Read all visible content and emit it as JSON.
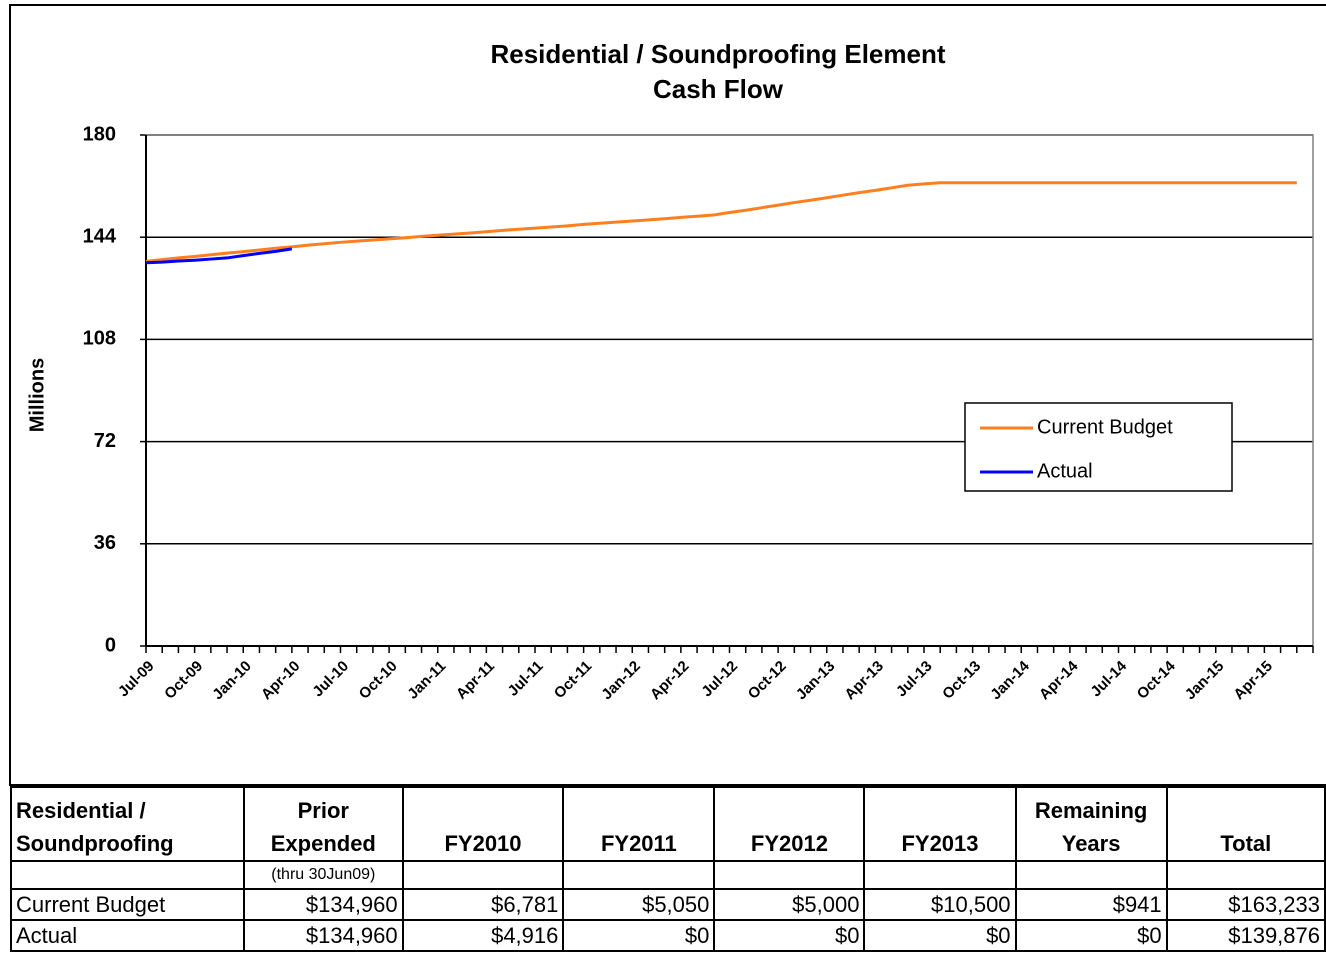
{
  "chart_data": {
    "type": "line",
    "title": "Residential / Soundproofing Element",
    "subtitle": "Cash Flow",
    "y_label": "Millions",
    "categories": [
      "Jul-09",
      null,
      null,
      "Oct-09",
      null,
      null,
      "Jan-10",
      null,
      null,
      "Apr-10",
      null,
      null,
      "Jul-10",
      null,
      null,
      "Oct-10",
      null,
      null,
      "Jan-11",
      null,
      null,
      "Apr-11",
      null,
      null,
      "Jul-11",
      null,
      null,
      "Oct-11",
      null,
      null,
      "Jan-12",
      null,
      null,
      "Apr-12",
      null,
      null,
      "Jul-12",
      null,
      null,
      "Oct-12",
      null,
      null,
      "Jan-13",
      null,
      null,
      "Apr-13",
      null,
      null,
      "Jul-13",
      null,
      null,
      "Oct-13",
      null,
      null,
      "Jan-14",
      null,
      null,
      "Apr-14",
      null,
      null,
      "Jul-14",
      null,
      null,
      "Oct-14",
      null,
      null,
      "Jan-15",
      null,
      null,
      "Apr-15",
      null,
      null
    ],
    "series": [
      {
        "name": "Current Budget",
        "color": "#ff7f1e",
        "values": [
          135.5,
          136.1,
          136.7,
          137.2,
          137.8,
          138.4,
          138.9,
          139.5,
          140.1,
          140.6,
          141.2,
          141.7,
          142.2,
          142.6,
          143.0,
          143.4,
          143.8,
          144.3,
          144.7,
          145.1,
          145.5,
          145.9,
          146.4,
          146.8,
          147.2,
          147.6,
          148.0,
          148.5,
          148.9,
          149.3,
          149.7,
          150.1,
          150.5,
          151.0,
          151.4,
          151.8,
          152.7,
          153.5,
          154.4,
          155.3,
          156.2,
          157.0,
          157.9,
          158.8,
          159.7,
          160.5,
          161.4,
          162.3,
          162.8,
          163.2,
          163.2,
          163.2,
          163.2,
          163.2,
          163.2,
          163.2,
          163.2,
          163.2,
          163.2,
          163.2,
          163.2,
          163.2,
          163.2,
          163.2,
          163.2,
          163.2,
          163.2,
          163.2,
          163.2,
          163.2,
          163.2,
          163.2
        ]
      },
      {
        "name": "Actual",
        "color": "#0000ff",
        "values": [
          135.0,
          135.2,
          135.6,
          135.9,
          136.3,
          136.7,
          137.5,
          138.3,
          139.0,
          139.9,
          null,
          null,
          null,
          null,
          null,
          null,
          null,
          null,
          null,
          null,
          null,
          null,
          null,
          null,
          null,
          null,
          null,
          null,
          null,
          null,
          null,
          null,
          null,
          null,
          null,
          null,
          null,
          null,
          null,
          null,
          null,
          null,
          null,
          null,
          null,
          null,
          null,
          null,
          null,
          null,
          null,
          null,
          null,
          null,
          null,
          null,
          null,
          null,
          null,
          null,
          null,
          null,
          null,
          null,
          null,
          null,
          null,
          null,
          null,
          null,
          null,
          null
        ]
      }
    ],
    "ylim": [
      0,
      180
    ],
    "yticks": [
      0,
      36,
      72,
      108,
      144,
      180
    ],
    "grid": true,
    "legend": "right"
  },
  "table": {
    "header": [
      "Residential /\nSoundproofing",
      "Prior\nExpended",
      "FY2010",
      "FY2011",
      "FY2012",
      "FY2013",
      "Remaining\nYears",
      "Total"
    ],
    "subheader": "(thru 30Jun09)",
    "rows": [
      [
        "Current Budget",
        "$134,960",
        "$6,781",
        "$5,050",
        "$5,000",
        "$10,500",
        "$941",
        "$163,233"
      ],
      [
        "Actual",
        "$134,960",
        "$4,916",
        "$0",
        "$0",
        "$0",
        "$0",
        "$139,876"
      ]
    ]
  }
}
